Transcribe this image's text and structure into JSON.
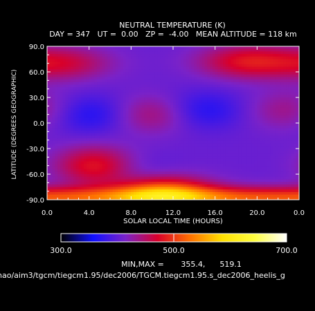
{
  "chart_data": {
    "type": "heatmap",
    "title": "NEUTRAL TEMPERATURE (K)",
    "subtitle": "DAY = 347   UT =  0.00   ZP =  -4.00   MEAN ALTITUDE = 118 km",
    "xlabel": "SOLAR LOCAL TIME (HOURS)",
    "ylabel": "LATITUDE (DEGREES GEOGRAPHIC)",
    "xlim": [
      0,
      24
    ],
    "ylim": [
      -90,
      90
    ],
    "x_ticks": [
      "0.0",
      "4.0",
      "8.0",
      "12.0",
      "16.0",
      "20.0",
      "0.0"
    ],
    "y_ticks": [
      "90.0",
      "60.0",
      "30.0",
      "0.0",
      "-30.0",
      "-60.0",
      "-90.0"
    ],
    "colorbar": {
      "min": 300.0,
      "max": 700.0,
      "ticks": [
        "300.0",
        "500.0",
        "700.0"
      ],
      "stops": [
        "#000000",
        "#1010ff",
        "#7a22c8",
        "#d8002a",
        "#ff7000",
        "#ffe000",
        "#ffff40",
        "#ffffff"
      ]
    },
    "minmax_text": "MIN,MAX =       355.4,      519.1",
    "data_min": 355.4,
    "data_max": 519.1,
    "features": [
      {
        "label": "cold",
        "x": 4.0,
        "y": 10,
        "value": 365
      },
      {
        "label": "cold",
        "x": 15.0,
        "y": 15,
        "value": 368
      },
      {
        "label": "cold",
        "x": 9.0,
        "y": -60,
        "value": 390
      },
      {
        "label": "warm",
        "x": 1.5,
        "y": 70,
        "value": 462
      },
      {
        "label": "warm",
        "x": 19.0,
        "y": 72,
        "value": 478
      },
      {
        "label": "warm",
        "x": 10.0,
        "y": 10,
        "value": 445
      },
      {
        "label": "warm",
        "x": 23.0,
        "y": 15,
        "value": 440
      },
      {
        "label": "warm",
        "x": 11.0,
        "y": -82,
        "value": 519
      },
      {
        "label": "warm",
        "x": 4.5,
        "y": -50,
        "value": 480
      }
    ]
  },
  "footer": {
    "path": "hao/aim3/tgcm/tiegcm1.95/dec2006/TGCM.tiegcm1.95.s_dec2006_heelis_g"
  }
}
